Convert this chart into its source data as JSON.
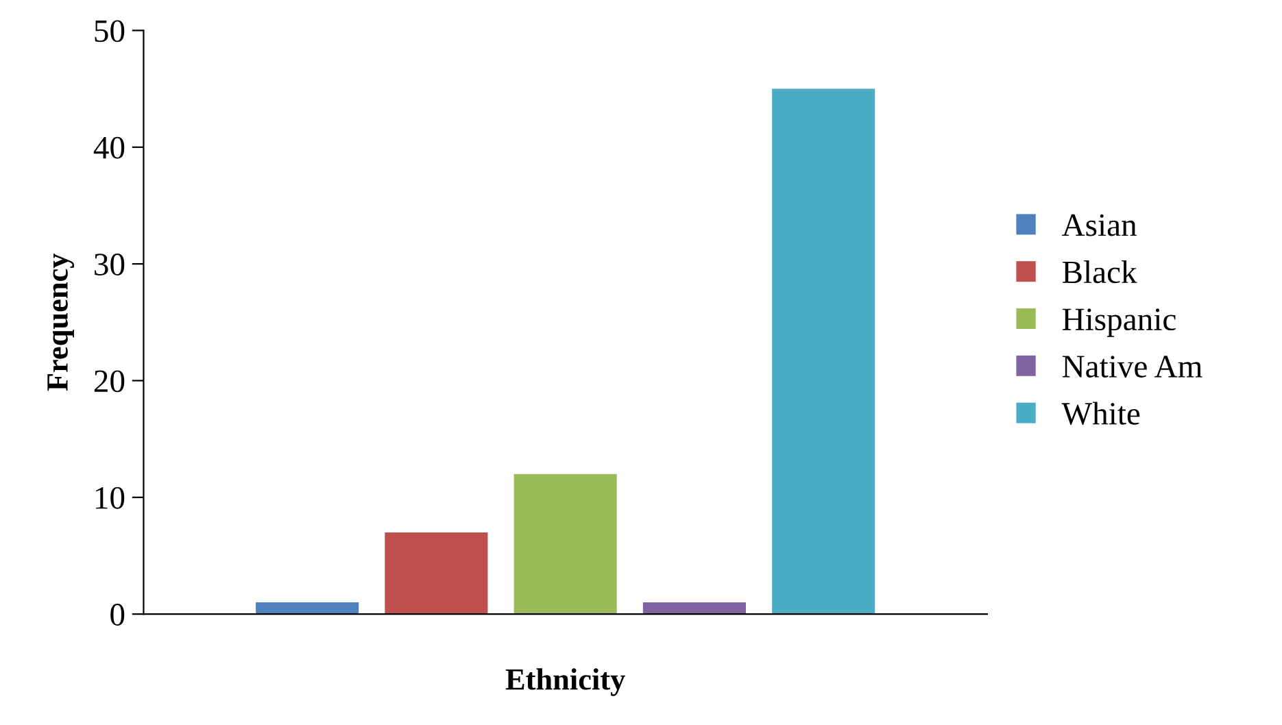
{
  "chart_data": {
    "type": "bar",
    "xlabel": "Ethnicity",
    "ylabel": "Frequency",
    "categories": [
      null
    ],
    "series": [
      {
        "name": "Asian",
        "color": "#4f81bd",
        "values": [
          1
        ]
      },
      {
        "name": "Black",
        "color": "#c0504d",
        "values": [
          7
        ]
      },
      {
        "name": "Hispanic",
        "color": "#9bbb59",
        "values": [
          12
        ]
      },
      {
        "name": "Native Am",
        "color": "#8064a2",
        "values": [
          1
        ]
      },
      {
        "name": "White",
        "color": "#4bacc6",
        "values": [
          45
        ]
      }
    ],
    "ylim": [
      0,
      50
    ],
    "yticks": [
      0,
      10,
      20,
      30,
      40,
      50
    ],
    "grid": false,
    "legend": "right"
  }
}
